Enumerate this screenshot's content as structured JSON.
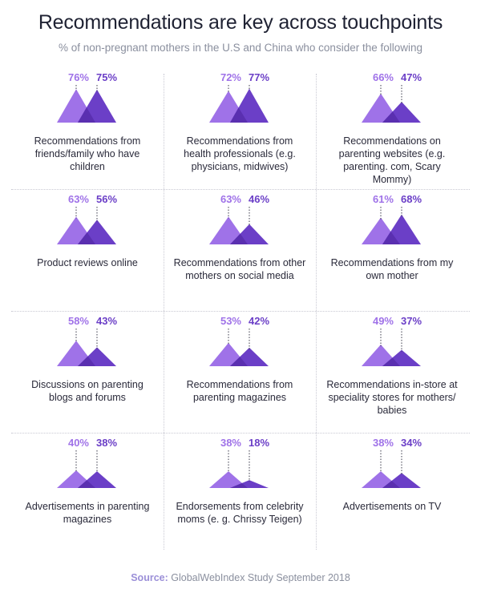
{
  "title": "Recommendations are key across touchpoints",
  "subtitle": "% of non-pregnant mothers in the U.S and China who consider the following",
  "source": {
    "label": "Source:",
    "text": "GlobalWebIndex Study September 2018"
  },
  "colors": {
    "series_a": "#9f72e8",
    "series_b": "#6b3fc7",
    "overlap": "#5a2fb0"
  },
  "chart_data": {
    "type": "area",
    "categories": [
      "Recommendations from friends/family who have children",
      "Recommendations from health professionals (e.g. physicians, midwives)",
      "Recommendations on parenting websites (e.g. parenting. com, Scary Mommy)",
      "Product reviews online",
      "Recommendations from other mothers on social media",
      "Recommendations from my own mother",
      "Discussions on parenting blogs and forums",
      "Recommendations from parenting magazines",
      "Recommendations in-store at speciality stores for mothers/ babies",
      "Advertisements in parenting magazines",
      "Endorsements from celebrity moms (e. g. Chrissy Teigen)",
      "Advertisements on TV"
    ],
    "series": [
      {
        "values": [
          76,
          72,
          66,
          63,
          63,
          61,
          58,
          53,
          49,
          40,
          38,
          38
        ]
      },
      {
        "values": [
          75,
          77,
          47,
          56,
          46,
          68,
          43,
          42,
          37,
          38,
          18,
          34
        ]
      }
    ],
    "ylim": [
      0,
      100
    ]
  },
  "cells": [
    {
      "label": "Recommendations from friends/family who have children",
      "a": "76%",
      "b": "75%"
    },
    {
      "label": "Recommendations from health professionals (e.g. physicians, midwives)",
      "a": "72%",
      "b": "77%"
    },
    {
      "label": "Recommendations on parenting websites (e.g. parenting. com, Scary Mommy)",
      "a": "66%",
      "b": "47%"
    },
    {
      "label": "Product reviews online",
      "a": "63%",
      "b": "56%"
    },
    {
      "label": "Recommendations from other mothers on social media",
      "a": "63%",
      "b": "46%"
    },
    {
      "label": "Recommendations from my own mother",
      "a": "61%",
      "b": "68%"
    },
    {
      "label": "Discussions on parenting blogs and forums",
      "a": "58%",
      "b": "43%"
    },
    {
      "label": "Recommendations from parenting magazines",
      "a": "53%",
      "b": "42%"
    },
    {
      "label": "Recommendations in-store at speciality stores for mothers/ babies",
      "a": "49%",
      "b": "37%"
    },
    {
      "label": "Advertisements in parenting magazines",
      "a": "40%",
      "b": "38%"
    },
    {
      "label": "Endorsements from celebrity moms (e. g. Chrissy Teigen)",
      "a": "38%",
      "b": "18%"
    },
    {
      "label": "Advertisements on TV",
      "a": "38%",
      "b": "34%"
    }
  ]
}
